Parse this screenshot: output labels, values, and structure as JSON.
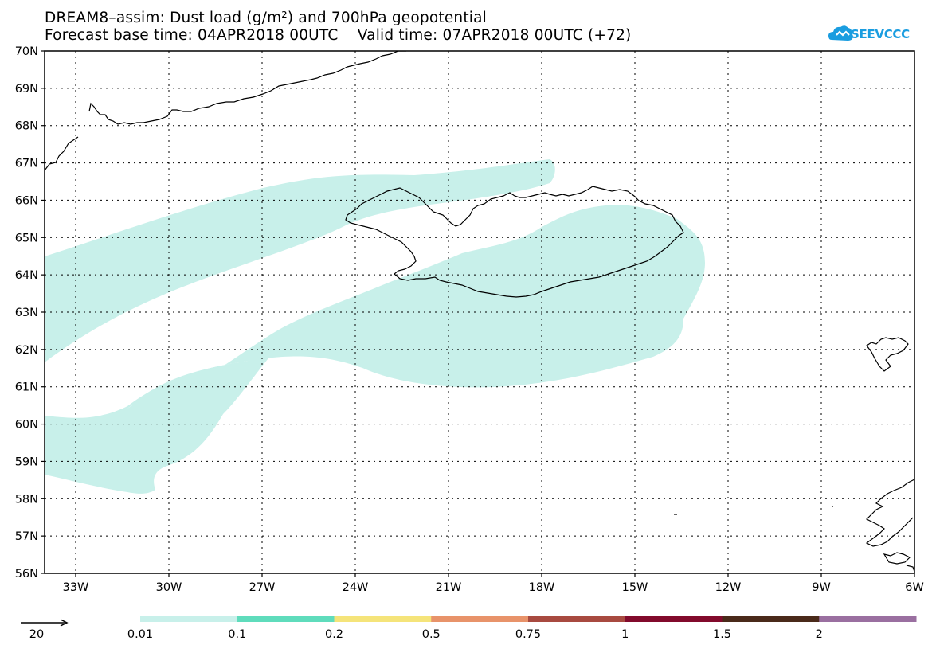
{
  "title": {
    "line1": "DREAM8–assim: Dust load (g/m²) and 700hPa geopotential",
    "line2": "Forecast base time: 04APR2018 00UTC    Valid time: 07APR2018 00UTC (+72)"
  },
  "logo": {
    "text": "SEEVCCC",
    "icon": "cloud-icon",
    "color": "#1a9de0"
  },
  "map_data": {
    "lon_range": [
      -34,
      -6
    ],
    "lat_range": [
      56,
      70
    ],
    "lat_labels": [
      "56N",
      "57N",
      "58N",
      "59N",
      "60N",
      "61N",
      "62N",
      "63N",
      "64N",
      "65N",
      "66N",
      "67N",
      "68N",
      "69N",
      "70N"
    ],
    "lon_labels": [
      "33W",
      "30W",
      "27W",
      "24W",
      "21W",
      "18W",
      "15W",
      "12W",
      "9W",
      "6W"
    ],
    "dust_fill_color": "#c8f0ea",
    "coastline_color": "#000000"
  },
  "legend": {
    "vector_label": "20",
    "scale": [
      {
        "label": "0.01",
        "color": "#c8f0ea"
      },
      {
        "label": "0.1",
        "color": "#5fdcbc"
      },
      {
        "label": "0.2",
        "color": "#f5e47a"
      },
      {
        "label": "0.5",
        "color": "#e8936a"
      },
      {
        "label": "0.75",
        "color": "#a84a40"
      },
      {
        "label": "1",
        "color": "#820a2c"
      },
      {
        "label": "1.5",
        "color": "#4a2a1a"
      },
      {
        "label": "2",
        "color": "#9a6fa0"
      }
    ]
  }
}
